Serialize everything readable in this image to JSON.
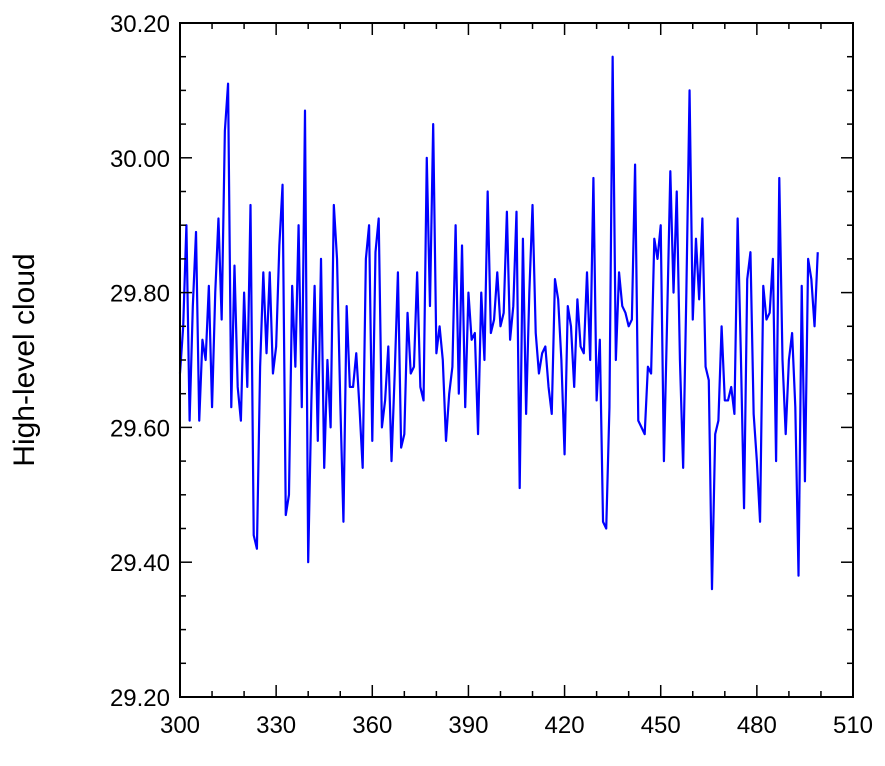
{
  "chart_data": {
    "type": "line",
    "ylabel": "High-level cloud",
    "color": "#0000ff",
    "x": [
      300,
      301,
      302,
      303,
      304,
      305,
      306,
      307,
      308,
      309,
      310,
      311,
      312,
      313,
      314,
      315,
      316,
      317,
      318,
      319,
      320,
      321,
      322,
      323,
      324,
      325,
      326,
      327,
      328,
      329,
      330,
      331,
      332,
      333,
      334,
      335,
      336,
      337,
      338,
      339,
      340,
      341,
      342,
      343,
      344,
      345,
      346,
      347,
      348,
      349,
      350,
      351,
      352,
      353,
      354,
      355,
      356,
      357,
      358,
      359,
      360,
      361,
      362,
      363,
      364,
      365,
      366,
      367,
      368,
      369,
      370,
      371,
      372,
      373,
      374,
      375,
      376,
      377,
      378,
      379,
      380,
      381,
      382,
      383,
      384,
      385,
      386,
      387,
      388,
      389,
      390,
      391,
      392,
      393,
      394,
      395,
      396,
      397,
      398,
      399,
      400,
      401,
      402,
      403,
      404,
      405,
      406,
      407,
      408,
      409,
      410,
      411,
      412,
      413,
      414,
      415,
      416,
      417,
      418,
      419,
      420,
      421,
      422,
      423,
      424,
      425,
      426,
      427,
      428,
      429,
      430,
      431,
      432,
      433,
      434,
      435,
      436,
      437,
      438,
      439,
      440,
      441,
      442,
      443,
      444,
      445,
      446,
      447,
      448,
      449,
      450,
      451,
      452,
      453,
      454,
      455,
      456,
      457,
      458,
      459,
      460,
      461,
      462,
      463,
      464,
      465,
      466,
      467,
      468,
      469,
      470,
      471,
      472,
      473,
      474,
      475,
      476,
      477,
      478,
      479,
      480,
      481,
      482,
      483,
      484,
      485,
      486,
      487,
      488,
      489,
      490,
      491,
      492,
      493,
      494,
      495,
      496,
      497,
      498,
      499
    ],
    "values": [
      29.68,
      29.75,
      29.9,
      29.61,
      29.78,
      29.89,
      29.61,
      29.73,
      29.7,
      29.81,
      29.63,
      29.8,
      29.91,
      29.76,
      30.04,
      30.11,
      29.63,
      29.84,
      29.66,
      29.61,
      29.8,
      29.66,
      29.93,
      29.44,
      29.42,
      29.69,
      29.83,
      29.71,
      29.83,
      29.68,
      29.72,
      29.87,
      29.96,
      29.47,
      29.5,
      29.81,
      29.69,
      29.9,
      29.63,
      30.07,
      29.4,
      29.64,
      29.81,
      29.58,
      29.85,
      29.54,
      29.7,
      29.6,
      29.93,
      29.85,
      29.64,
      29.46,
      29.78,
      29.66,
      29.66,
      29.71,
      29.63,
      29.54,
      29.85,
      29.9,
      29.58,
      29.86,
      29.91,
      29.6,
      29.64,
      29.72,
      29.55,
      29.68,
      29.83,
      29.57,
      29.59,
      29.77,
      29.68,
      29.69,
      29.83,
      29.66,
      29.64,
      30.0,
      29.78,
      30.05,
      29.71,
      29.75,
      29.7,
      29.58,
      29.65,
      29.69,
      29.9,
      29.65,
      29.87,
      29.63,
      29.8,
      29.73,
      29.74,
      29.59,
      29.8,
      29.7,
      29.95,
      29.74,
      29.76,
      29.83,
      29.75,
      29.77,
      29.92,
      29.73,
      29.78,
      29.92,
      29.51,
      29.88,
      29.62,
      29.8,
      29.93,
      29.74,
      29.68,
      29.71,
      29.72,
      29.66,
      29.62,
      29.82,
      29.79,
      29.7,
      29.56,
      29.78,
      29.75,
      29.66,
      29.79,
      29.72,
      29.71,
      29.83,
      29.7,
      29.97,
      29.64,
      29.73,
      29.46,
      29.45,
      29.63,
      30.15,
      29.7,
      29.83,
      29.78,
      29.77,
      29.75,
      29.76,
      29.99,
      29.61,
      29.6,
      29.59,
      29.69,
      29.68,
      29.88,
      29.85,
      29.9,
      29.55,
      29.76,
      29.98,
      29.8,
      29.95,
      29.7,
      29.54,
      29.8,
      30.1,
      29.76,
      29.88,
      29.79,
      29.91,
      29.69,
      29.67,
      29.36,
      29.59,
      29.61,
      29.75,
      29.64,
      29.64,
      29.66,
      29.62,
      29.91,
      29.71,
      29.48,
      29.82,
      29.86,
      29.62,
      29.55,
      29.46,
      29.81,
      29.76,
      29.77,
      29.85,
      29.55,
      29.97,
      29.7,
      29.59,
      29.7,
      29.74,
      29.63,
      29.38,
      29.81,
      29.52,
      29.85,
      29.82,
      29.75,
      29.86
    ],
    "xlim": [
      300,
      510
    ],
    "xticks": [
      300,
      330,
      360,
      390,
      420,
      450,
      480,
      510
    ],
    "xminorticks": [
      310,
      320,
      340,
      350,
      370,
      380,
      400,
      410,
      430,
      440,
      460,
      470,
      490,
      500
    ],
    "ylim": [
      29.2,
      30.2
    ],
    "yticks": [
      {
        "value": 29.2,
        "label": "29.20"
      },
      {
        "value": 29.4,
        "label": "29.40"
      },
      {
        "value": 29.6,
        "label": "29.60"
      },
      {
        "value": 29.8,
        "label": "29.80"
      },
      {
        "value": 30.0,
        "label": "30.00"
      },
      {
        "value": 30.2,
        "label": "30.20"
      }
    ],
    "yminorticks": [
      29.25,
      29.3,
      29.35,
      29.45,
      29.5,
      29.55,
      29.65,
      29.7,
      29.75,
      29.85,
      29.9,
      29.95,
      30.05,
      30.1,
      30.15
    ]
  }
}
